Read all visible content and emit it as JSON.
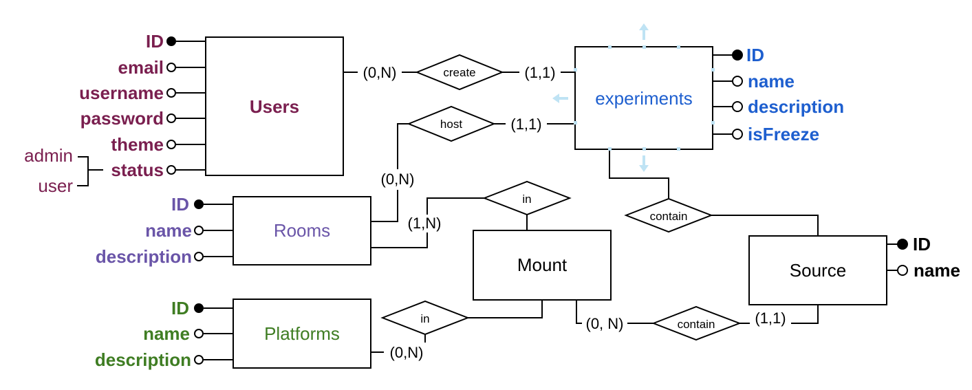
{
  "colors": {
    "users": "#7a1f4f",
    "rooms": "#6a55a8",
    "platforms": "#3f7d23",
    "experiments": "#1e5fcf",
    "black": "#000000",
    "selection_handles": "#bfe3f4"
  },
  "entities": {
    "users": {
      "label": "Users",
      "attributes": [
        "ID",
        "email",
        "username",
        "password",
        "theme",
        "status"
      ],
      "status_values": [
        "admin",
        "user"
      ]
    },
    "experiments": {
      "label": "experiments",
      "attributes": [
        "ID",
        "name",
        "description",
        "isFreeze"
      ]
    },
    "rooms": {
      "label": "Rooms",
      "attributes": [
        "ID",
        "name",
        "description"
      ]
    },
    "platforms": {
      "label": "Platforms",
      "attributes": [
        "ID",
        "name",
        "description"
      ]
    },
    "mount": {
      "label": "Mount"
    },
    "source": {
      "label": "Source",
      "attributes": [
        "ID",
        "name"
      ]
    }
  },
  "relationships": {
    "create": {
      "label": "create",
      "card_left": "(0,N)",
      "card_right": "(1,1)"
    },
    "host": {
      "label": "host",
      "card_top": "(1,1)",
      "card_bottom": "(0,N)"
    },
    "in_rooms": {
      "label": "in",
      "card": "(1,N)"
    },
    "contain_exp": {
      "label": "contain"
    },
    "in_platforms": {
      "label": "in",
      "card": "(0,N)"
    },
    "contain_mount": {
      "label": "contain",
      "card_left": "(0, N)",
      "card_right": "(1,1)"
    }
  }
}
